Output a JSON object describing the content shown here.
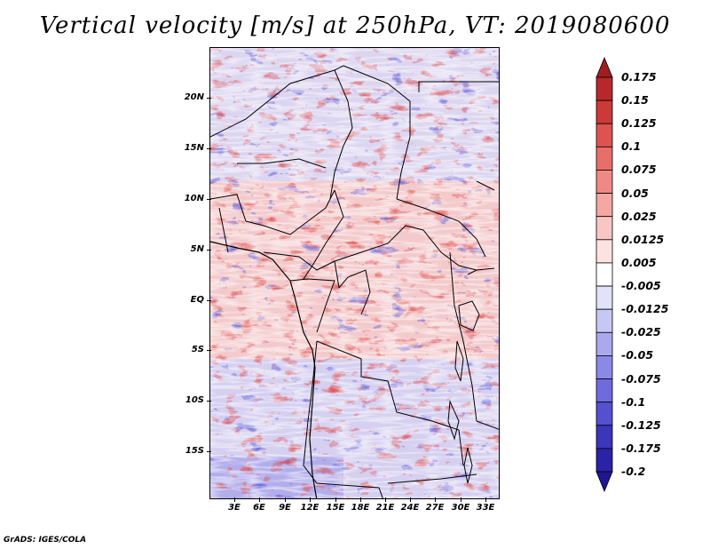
{
  "title": "Vertical velocity [m/s] at 250hPa, VT: 2019080600",
  "credit": "GrADS: IGES/COLA",
  "map": {
    "lat_labels": [
      "20N",
      "15N",
      "10N",
      "5N",
      "EQ",
      "5S",
      "10S",
      "15S"
    ],
    "lon_labels": [
      "3E",
      "6E",
      "9E",
      "12E",
      "15E",
      "18E",
      "21E",
      "24E",
      "27E",
      "30E",
      "33E"
    ]
  },
  "colorbar": {
    "labels": [
      "0.175",
      "0.15",
      "0.125",
      "0.1",
      "0.075",
      "0.05",
      "0.025",
      "0.0125",
      "0.005",
      "-0.005",
      "-0.0125",
      "-0.025",
      "-0.05",
      "-0.075",
      "-0.1",
      "-0.125",
      "-0.175",
      "-0.2"
    ],
    "colors": [
      "#a01e22",
      "#b8282b",
      "#cc3a38",
      "#de5350",
      "#e86e6a",
      "#f08985",
      "#f5a7a3",
      "#fac6c3",
      "#fde2e0",
      "#ffffff",
      "#e2e2fb",
      "#c7c7f5",
      "#aaa9ef",
      "#8b89e6",
      "#6f6bdc",
      "#5450cf",
      "#3b36bc",
      "#2a23a6",
      "#1f1690"
    ]
  }
}
